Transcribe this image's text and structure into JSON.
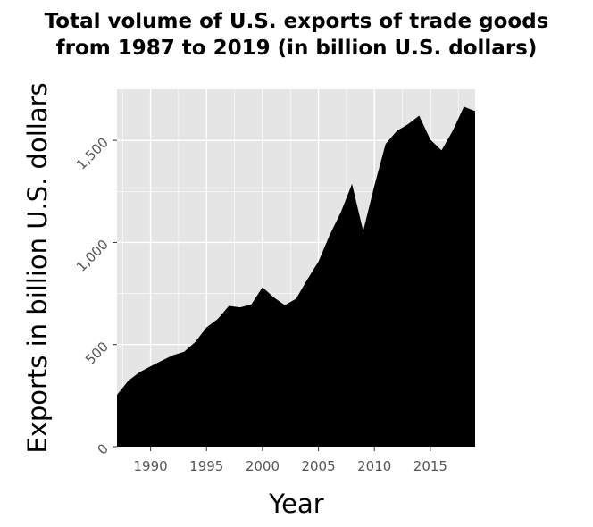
{
  "chart_data": {
    "type": "area",
    "title_lines": [
      "Total volume of U.S. exports of trade goods",
      "from 1987 to 2019 (in billion U.S. dollars)"
    ],
    "xlabel": "Year",
    "ylabel": "Exports in billion U.S. dollars",
    "xlim": [
      1987,
      2019
    ],
    "ylim": [
      0,
      1750
    ],
    "x_ticks": [
      1990,
      1995,
      2000,
      2005,
      2010,
      2015
    ],
    "x_tick_labels": [
      "1990",
      "1995",
      "2000",
      "2005",
      "2010",
      "2015"
    ],
    "y_ticks": [
      0,
      500,
      1000,
      1500
    ],
    "y_tick_labels": [
      "0",
      "500",
      "1,000",
      "1,500"
    ],
    "grid": true,
    "legend": "none",
    "colors": {
      "fill": "#000000",
      "panel": "#e5e5e5",
      "grid": "#ffffff"
    },
    "x": [
      1987,
      1988,
      1989,
      1990,
      1991,
      1992,
      1993,
      1994,
      1995,
      1996,
      1997,
      1998,
      1999,
      2000,
      2001,
      2002,
      2003,
      2004,
      2005,
      2006,
      2007,
      2008,
      2009,
      2010,
      2011,
      2012,
      2013,
      2014,
      2015,
      2016,
      2017,
      2018,
      2019
    ],
    "values": [
      254,
      322,
      364,
      393,
      421,
      448,
      465,
      513,
      584,
      625,
      689,
      682,
      696,
      781,
      731,
      693,
      724,
      818,
      906,
      1036,
      1148,
      1287,
      1056,
      1278,
      1482,
      1546,
      1579,
      1621,
      1504,
      1451,
      1547,
      1665,
      1643
    ]
  }
}
